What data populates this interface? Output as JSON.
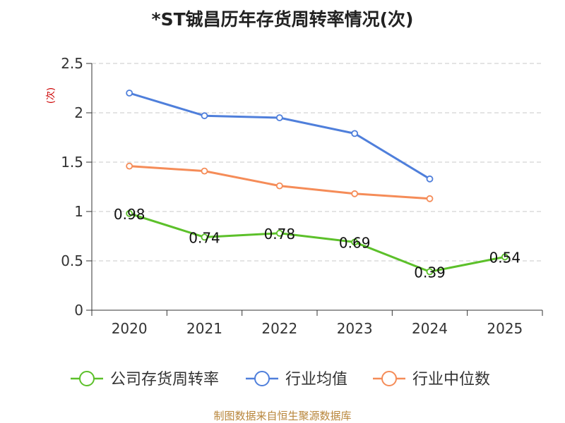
{
  "chart_data": {
    "type": "line",
    "title": "*ST铖昌历年存货周转率情况(次)",
    "ylabel": "(次)",
    "xlabel": "",
    "categories": [
      "2020",
      "2021",
      "2022",
      "2023",
      "2024",
      "2025"
    ],
    "ylim": [
      0,
      2.5
    ],
    "yticks": [
      "0",
      "0.5",
      "1",
      "1.5",
      "2",
      "2.5"
    ],
    "grid": true,
    "legend_position": "bottom",
    "series": [
      {
        "name": "公司存货周转率",
        "color": "#5cc02a",
        "values": [
          0.98,
          0.74,
          0.78,
          0.69,
          0.39,
          0.54
        ],
        "labels": [
          "0.98",
          "0.74",
          "0.78",
          "0.69",
          "0.39",
          "0.54"
        ]
      },
      {
        "name": "行业均值",
        "color": "#4f7fdb",
        "values": [
          2.2,
          1.97,
          1.95,
          1.79,
          1.33,
          null
        ]
      },
      {
        "name": "行业中位数",
        "color": "#f58c58",
        "values": [
          1.46,
          1.41,
          1.26,
          1.18,
          1.13,
          null
        ]
      }
    ]
  },
  "source": "制图数据来自恒生聚源数据库"
}
